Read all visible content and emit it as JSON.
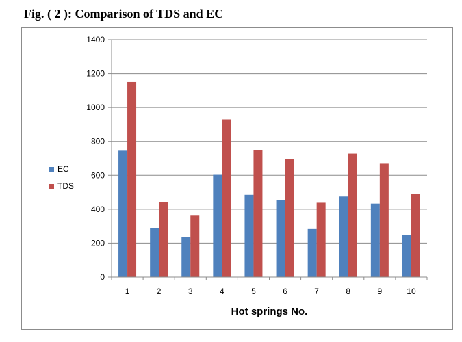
{
  "figure": {
    "title": "Fig. ( 2 ): Comparison of TDS and EC"
  },
  "chart_data": {
    "type": "bar",
    "title": "",
    "xlabel": "Hot springs No.",
    "ylabel": "",
    "categories": [
      "1",
      "2",
      "3",
      "4",
      "5",
      "6",
      "7",
      "8",
      "9",
      "10"
    ],
    "series": [
      {
        "name": "EC",
        "color": "#4f81bd",
        "values": [
          745,
          288,
          235,
          603,
          485,
          455,
          283,
          475,
          433,
          250
        ]
      },
      {
        "name": "TDS",
        "color": "#c0504d",
        "values": [
          1150,
          443,
          362,
          930,
          750,
          697,
          438,
          728,
          668,
          490
        ]
      }
    ],
    "ylim": [
      0,
      1400
    ],
    "yticks": [
      0,
      200,
      400,
      600,
      800,
      1000,
      1200,
      1400
    ],
    "grid": true,
    "legend_position": "left"
  }
}
